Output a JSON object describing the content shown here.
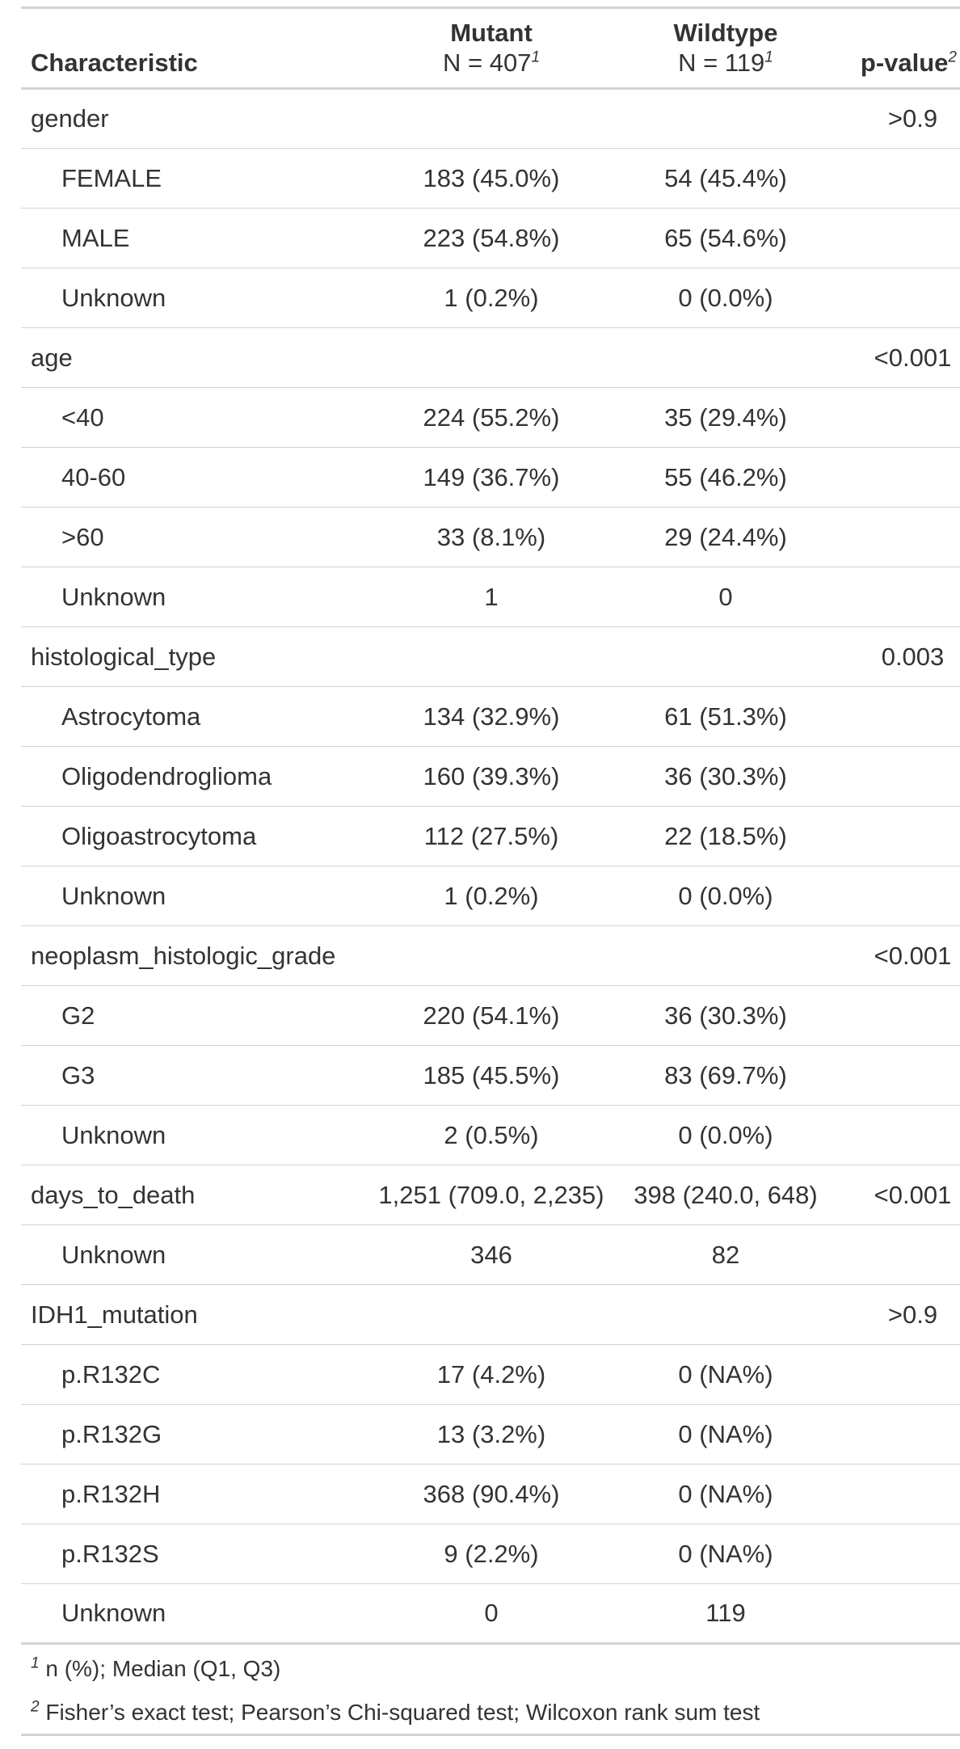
{
  "header": {
    "characteristic": "Characteristic",
    "group1_name": "Mutant",
    "group1_n": "N = 407",
    "group1_sup": "1",
    "group2_name": "Wildtype",
    "group2_n": "N = 119",
    "group2_sup": "1",
    "pvalue": "p-value",
    "pvalue_sup": "2"
  },
  "rows": [
    {
      "label": "gender",
      "indent": false,
      "mutant": "",
      "wildtype": "",
      "p": ">0.9"
    },
    {
      "label": "FEMALE",
      "indent": true,
      "mutant": "183 (45.0%)",
      "wildtype": "54 (45.4%)",
      "p": ""
    },
    {
      "label": "MALE",
      "indent": true,
      "mutant": "223 (54.8%)",
      "wildtype": "65 (54.6%)",
      "p": ""
    },
    {
      "label": "Unknown",
      "indent": true,
      "mutant": "1 (0.2%)",
      "wildtype": "0 (0.0%)",
      "p": ""
    },
    {
      "label": "age",
      "indent": false,
      "mutant": "",
      "wildtype": "",
      "p": "<0.001"
    },
    {
      "label": "<40",
      "indent": true,
      "mutant": "224 (55.2%)",
      "wildtype": "35 (29.4%)",
      "p": ""
    },
    {
      "label": "40-60",
      "indent": true,
      "mutant": "149 (36.7%)",
      "wildtype": "55 (46.2%)",
      "p": ""
    },
    {
      "label": ">60",
      "indent": true,
      "mutant": "33 (8.1%)",
      "wildtype": "29 (24.4%)",
      "p": ""
    },
    {
      "label": "Unknown",
      "indent": true,
      "mutant": "1",
      "wildtype": "0",
      "p": ""
    },
    {
      "label": "histological_type",
      "indent": false,
      "mutant": "",
      "wildtype": "",
      "p": "0.003"
    },
    {
      "label": "Astrocytoma",
      "indent": true,
      "mutant": "134 (32.9%)",
      "wildtype": "61 (51.3%)",
      "p": ""
    },
    {
      "label": "Oligodendroglioma",
      "indent": true,
      "mutant": "160 (39.3%)",
      "wildtype": "36 (30.3%)",
      "p": ""
    },
    {
      "label": "Oligoastrocytoma",
      "indent": true,
      "mutant": "112 (27.5%)",
      "wildtype": "22 (18.5%)",
      "p": ""
    },
    {
      "label": "Unknown",
      "indent": true,
      "mutant": "1 (0.2%)",
      "wildtype": "0 (0.0%)",
      "p": ""
    },
    {
      "label": "neoplasm_histologic_grade",
      "indent": false,
      "mutant": "",
      "wildtype": "",
      "p": "<0.001"
    },
    {
      "label": "G2",
      "indent": true,
      "mutant": "220 (54.1%)",
      "wildtype": "36 (30.3%)",
      "p": ""
    },
    {
      "label": "G3",
      "indent": true,
      "mutant": "185 (45.5%)",
      "wildtype": "83 (69.7%)",
      "p": ""
    },
    {
      "label": "Unknown",
      "indent": true,
      "mutant": "2 (0.5%)",
      "wildtype": "0 (0.0%)",
      "p": ""
    },
    {
      "label": "days_to_death",
      "indent": false,
      "mutant": "1,251 (709.0, 2,235)",
      "wildtype": "398 (240.0, 648)",
      "p": "<0.001"
    },
    {
      "label": "Unknown",
      "indent": true,
      "mutant": "346",
      "wildtype": "82",
      "p": ""
    },
    {
      "label": "IDH1_mutation",
      "indent": false,
      "mutant": "",
      "wildtype": "",
      "p": ">0.9"
    },
    {
      "label": "p.R132C",
      "indent": true,
      "mutant": "17 (4.2%)",
      "wildtype": "0 (NA%)",
      "p": ""
    },
    {
      "label": "p.R132G",
      "indent": true,
      "mutant": "13 (3.2%)",
      "wildtype": "0 (NA%)",
      "p": ""
    },
    {
      "label": "p.R132H",
      "indent": true,
      "mutant": "368 (90.4%)",
      "wildtype": "0 (NA%)",
      "p": ""
    },
    {
      "label": "p.R132S",
      "indent": true,
      "mutant": "9 (2.2%)",
      "wildtype": "0 (NA%)",
      "p": ""
    },
    {
      "label": "Unknown",
      "indent": true,
      "mutant": "0",
      "wildtype": "119",
      "p": ""
    }
  ],
  "footnotes": [
    {
      "mark": "1",
      "text": "n (%); Median (Q1, Q3)"
    },
    {
      "mark": "2",
      "text": "Fisher’s exact test; Pearson’s Chi-squared test; Wilcoxon rank sum test"
    }
  ],
  "colors": {
    "rule": "#d3d3d3",
    "text": "#333333"
  }
}
